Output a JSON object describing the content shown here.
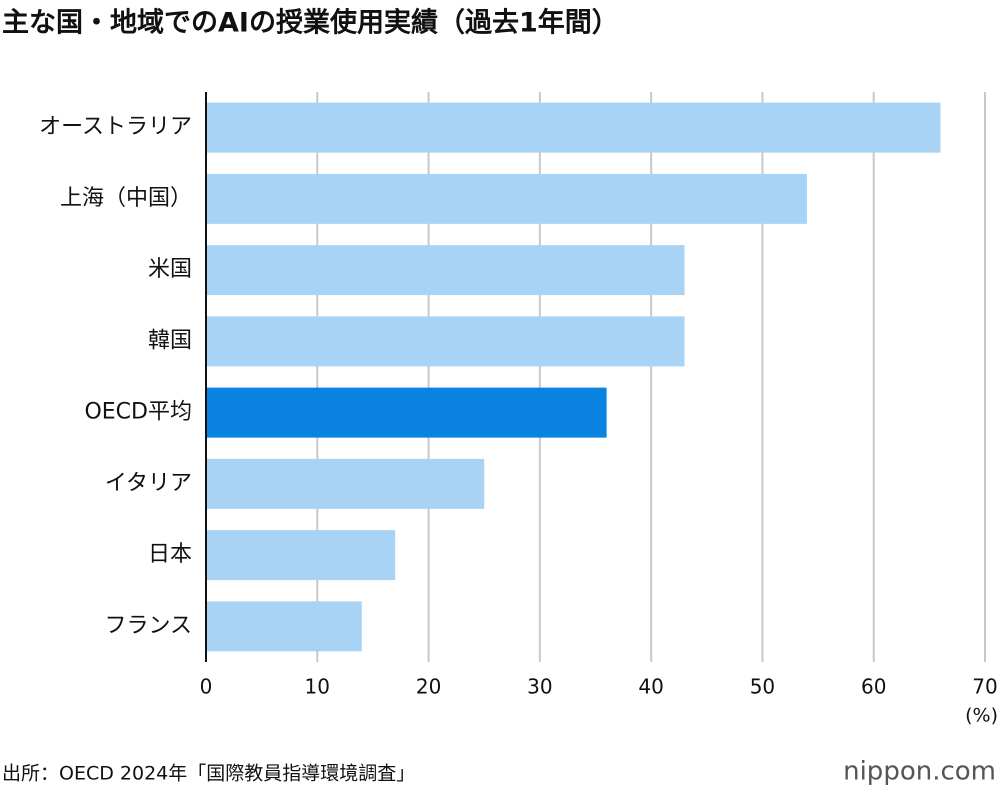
{
  "chart_data": {
    "type": "bar",
    "orientation": "horizontal",
    "title": "主な国・地域でのAIの授業使用実績（過去1年間）",
    "categories": [
      "オーストラリア",
      "上海（中国）",
      "米国",
      "韓国",
      "OECD平均",
      "イタリア",
      "日本",
      "フランス"
    ],
    "values": [
      66,
      54,
      43,
      43,
      36,
      25,
      17,
      14
    ],
    "colors": [
      "#a8d3f5",
      "#a8d3f5",
      "#a8d3f5",
      "#a8d3f5",
      "#0a84e0",
      "#a8d3f5",
      "#a8d3f5",
      "#a8d3f5"
    ],
    "xlim": [
      0,
      70
    ],
    "xticks": [
      0,
      10,
      20,
      30,
      40,
      50,
      60,
      70
    ],
    "grid": true,
    "x_unit": "(%)",
    "source": "出所：OECD 2024年「国際教員指導環境調査」",
    "logo": "nippon.com"
  }
}
